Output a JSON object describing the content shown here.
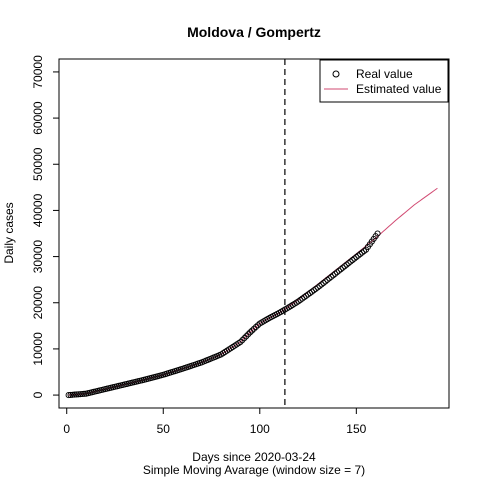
{
  "chart_data": {
    "type": "scatter",
    "title": "Moldova / Gompertz",
    "xlabel": "Days since 2020-03-24",
    "xlabel2": "Simple Moving Avarage (window size = 7)",
    "ylabel": "Daily cases",
    "xlim": [
      -4,
      198
    ],
    "ylim": [
      -2800,
      72800
    ],
    "x_ticks": [
      0,
      50,
      100,
      150
    ],
    "y_ticks": [
      0,
      10000,
      20000,
      30000,
      40000,
      50000,
      60000,
      70000
    ],
    "x_tick_labels": [
      "0",
      "50",
      "100",
      "150"
    ],
    "y_tick_labels": [
      "0",
      "10000",
      "20000",
      "30000",
      "40000",
      "50000",
      "60000",
      "70000"
    ],
    "vline_x": 113,
    "legend": {
      "position": "top-right",
      "entries": [
        "Real value",
        "Estimated value"
      ]
    },
    "series": [
      {
        "name": "Real value",
        "style": "points",
        "color": "#000000",
        "x_start": 1,
        "x_end": 161,
        "anchors": [
          [
            1,
            0
          ],
          [
            10,
            300
          ],
          [
            20,
            1300
          ],
          [
            30,
            2300
          ],
          [
            40,
            3300
          ],
          [
            50,
            4400
          ],
          [
            60,
            5700
          ],
          [
            70,
            7100
          ],
          [
            80,
            8800
          ],
          [
            90,
            11500
          ],
          [
            95,
            13600
          ],
          [
            100,
            15500
          ],
          [
            105,
            16700
          ],
          [
            110,
            17800
          ],
          [
            115,
            19000
          ],
          [
            120,
            20300
          ],
          [
            130,
            23300
          ],
          [
            140,
            26600
          ],
          [
            150,
            29900
          ],
          [
            155,
            31500
          ],
          [
            161,
            35000
          ]
        ]
      },
      {
        "name": "Estimated value",
        "style": "line",
        "color": "#d14a72",
        "x_start": 1,
        "x_end": 192,
        "anchors": [
          [
            1,
            0
          ],
          [
            10,
            300
          ],
          [
            20,
            1300
          ],
          [
            30,
            2300
          ],
          [
            40,
            3300
          ],
          [
            50,
            4400
          ],
          [
            60,
            5700
          ],
          [
            70,
            7100
          ],
          [
            80,
            8800
          ],
          [
            90,
            11500
          ],
          [
            95,
            13600
          ],
          [
            100,
            15500
          ],
          [
            105,
            16700
          ],
          [
            110,
            17800
          ],
          [
            113,
            18600
          ],
          [
            120,
            20700
          ],
          [
            130,
            24000
          ],
          [
            140,
            27300
          ],
          [
            150,
            30600
          ],
          [
            160,
            34000
          ],
          [
            170,
            37700
          ],
          [
            180,
            41200
          ],
          [
            192,
            44800
          ]
        ]
      }
    ]
  }
}
